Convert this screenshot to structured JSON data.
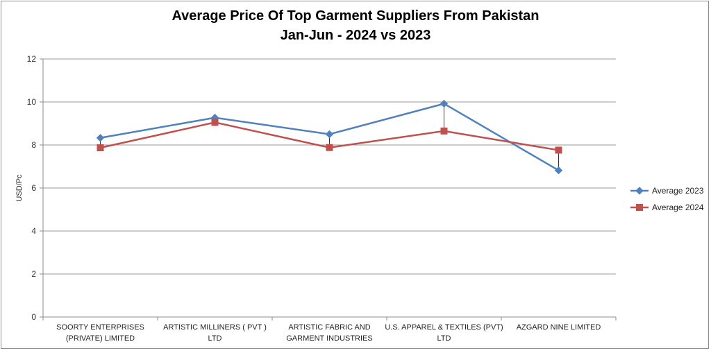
{
  "chart_data": {
    "type": "line",
    "title_line1": "Average Price Of Top Garment Suppliers From Pakistan",
    "title_line2": "Jan-Jun - 2024 vs 2023",
    "xlabel": "",
    "ylabel": "USD/Pc",
    "ylim": [
      0,
      12
    ],
    "yticks": [
      0,
      2,
      4,
      6,
      8,
      10,
      12
    ],
    "grid": true,
    "legend_position": "right",
    "categories": [
      [
        "SOORTY ENTERPRISES",
        "(PRIVATE) LIMITED"
      ],
      [
        "ARTISTIC MILLINERS ( PVT )",
        "LTD"
      ],
      [
        "ARTISTIC FABRIC AND",
        "GARMENT INDUSTRIES"
      ],
      [
        "U.S. APPAREL & TEXTILES (PVT)",
        "LTD"
      ],
      [
        "AZGARD NINE LIMITED"
      ]
    ],
    "series": [
      {
        "name": "Average 2023",
        "color": "#4f81bd",
        "marker": "diamond",
        "values": [
          8.33,
          9.27,
          8.5,
          9.92,
          6.82
        ]
      },
      {
        "name": "Average 2024",
        "color": "#c0504d",
        "marker": "square",
        "values": [
          7.87,
          9.05,
          7.88,
          8.65,
          7.76
        ]
      }
    ]
  }
}
